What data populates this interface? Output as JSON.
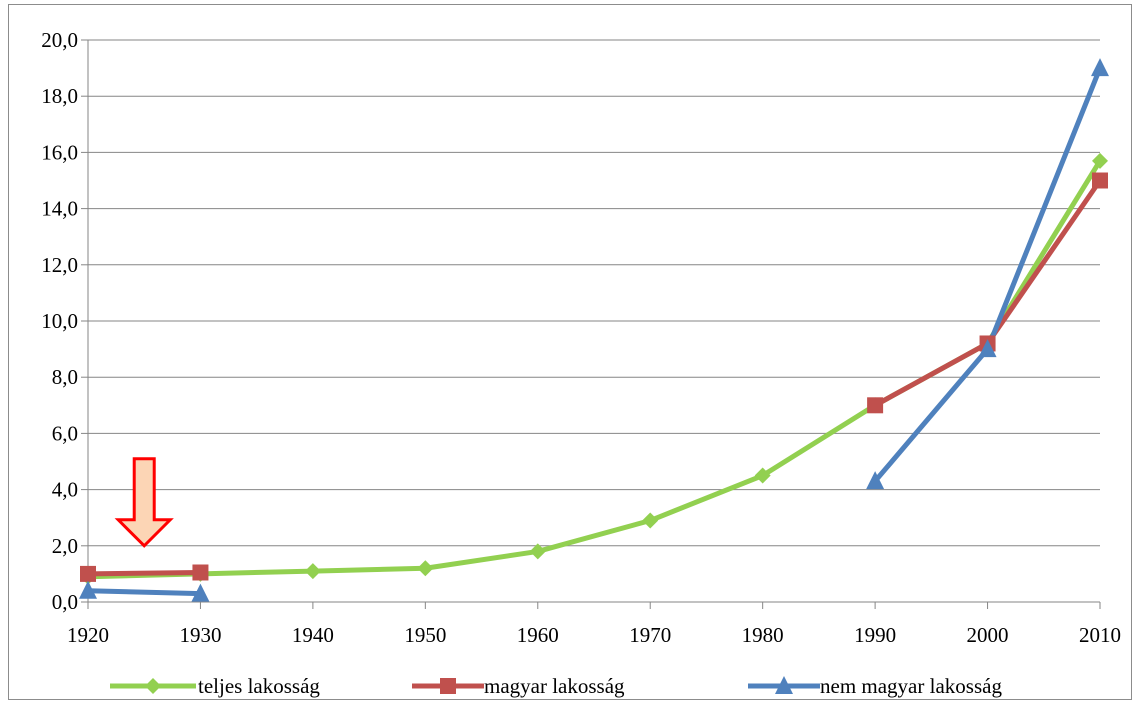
{
  "chart_data": {
    "type": "line",
    "title": "",
    "xlabel": "",
    "ylabel": "",
    "x": [
      1920,
      1930,
      1940,
      1950,
      1960,
      1970,
      1980,
      1990,
      2000,
      2010
    ],
    "x_tick_labels": [
      "1920",
      "1930",
      "1940",
      "1950",
      "1960",
      "1970",
      "1980",
      "1990",
      "2000",
      "2010"
    ],
    "ylim": [
      0,
      20
    ],
    "y_ticks": [
      0,
      2,
      4,
      6,
      8,
      10,
      12,
      14,
      16,
      18,
      20
    ],
    "y_tick_labels": [
      "0,0",
      "2,0",
      "4,0",
      "6,0",
      "8,0",
      "10,0",
      "12,0",
      "14,0",
      "16,0",
      "18,0",
      "20,0"
    ],
    "grid": "horizontal",
    "legend_position": "bottom",
    "series": [
      {
        "name": "teljes lakosság",
        "color": "#92d050",
        "marker": "diamond",
        "values": [
          0.9,
          1.0,
          1.1,
          1.2,
          1.8,
          2.9,
          4.5,
          7.0,
          9.2,
          15.7
        ]
      },
      {
        "name": "magyar lakosság",
        "color": "#c0504d",
        "marker": "square",
        "values": [
          1.0,
          1.05,
          null,
          null,
          null,
          null,
          null,
          7.0,
          9.2,
          15.0
        ]
      },
      {
        "name": "nem magyar lakosság",
        "color": "#4f81bd",
        "marker": "triangle",
        "values": [
          0.4,
          0.3,
          null,
          null,
          null,
          null,
          null,
          4.3,
          9.0,
          19.0
        ]
      }
    ],
    "annotations": [
      {
        "type": "down-arrow",
        "x": 1925,
        "y_top": 5.1,
        "y_bottom": 2.0,
        "fill": "#fcd5b5",
        "stroke": "#ff0000"
      }
    ]
  }
}
